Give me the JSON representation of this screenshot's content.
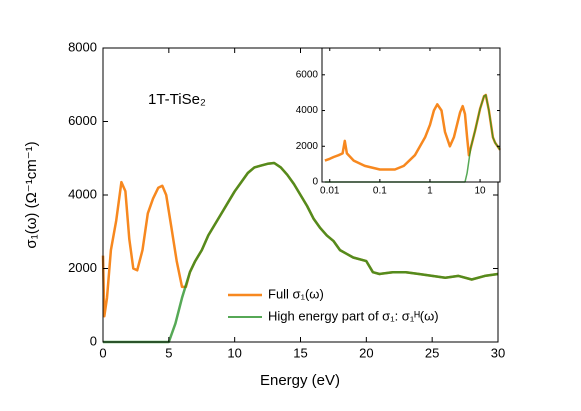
{
  "chart_data": [
    {
      "type": "line",
      "annotation": "1T-TiSe₂",
      "x_label": "Energy (eV)",
      "y_label": "σ₁(ω) (Ω⁻¹cm⁻¹)",
      "xlim": [
        0,
        30
      ],
      "ylim": [
        0,
        8000
      ],
      "xticks": [
        0,
        5,
        10,
        15,
        20,
        25,
        30
      ],
      "yticks": [
        0,
        2000,
        4000,
        6000,
        8000
      ],
      "legend": "lower right",
      "series": [
        {
          "name": "Full σ₁(ω)",
          "color": "#f7881f",
          "x": [
            0,
            0.1,
            0.3,
            0.6,
            1.0,
            1.4,
            1.7,
            2.0,
            2.3,
            2.6,
            3.0,
            3.4,
            3.8,
            4.2,
            4.5,
            4.8,
            5.2,
            5.6,
            6.0,
            6.3,
            6.6,
            7.0,
            7.5,
            8.0,
            8.5,
            9.0,
            9.5,
            10.0,
            10.5,
            11.0,
            11.5,
            12.0,
            12.5,
            13.0,
            13.5,
            14.0,
            14.5,
            15.0,
            15.5,
            16.0,
            16.5,
            17.0,
            17.5,
            18.0,
            18.5,
            19.0,
            20.0,
            20.5,
            21.0,
            22.0,
            23.0,
            24.0,
            25.0,
            26.0,
            27.0,
            28.0,
            29.0,
            30.0
          ],
          "values": [
            2350,
            700,
            1200,
            2500,
            3300,
            4350,
            4100,
            2800,
            2000,
            1950,
            2500,
            3500,
            3900,
            4200,
            4250,
            4000,
            3100,
            2200,
            1500,
            1500,
            1900,
            2200,
            2500,
            2900,
            3200,
            3500,
            3800,
            4100,
            4350,
            4600,
            4750,
            4800,
            4850,
            4870,
            4750,
            4550,
            4300,
            4000,
            3700,
            3350,
            3100,
            2900,
            2750,
            2500,
            2400,
            2300,
            2200,
            1900,
            1850,
            1900,
            1900,
            1850,
            1800,
            1750,
            1800,
            1700,
            1800,
            1850
          ]
        },
        {
          "name": "High energy part of σ₁: σ₁ᴴ(ω)",
          "color": "#1e8c1e",
          "x": [
            0,
            5.0,
            5.5,
            6.0,
            6.6,
            7.0,
            7.5,
            8.0,
            8.5,
            9.0,
            9.5,
            10.0,
            10.5,
            11.0,
            11.5,
            12.0,
            12.5,
            13.0,
            13.5,
            14.0,
            14.5,
            15.0,
            15.5,
            16.0,
            16.5,
            17.0,
            17.5,
            18.0,
            18.5,
            19.0,
            20.0,
            20.5,
            21.0,
            22.0,
            23.0,
            24.0,
            25.0,
            26.0,
            27.0,
            28.0,
            29.0,
            30.0
          ],
          "values": [
            0,
            0,
            500,
            1200,
            1900,
            2200,
            2500,
            2900,
            3200,
            3500,
            3800,
            4100,
            4350,
            4600,
            4750,
            4800,
            4850,
            4870,
            4750,
            4550,
            4300,
            4000,
            3700,
            3350,
            3100,
            2900,
            2750,
            2500,
            2400,
            2300,
            2200,
            1900,
            1850,
            1900,
            1900,
            1850,
            1800,
            1750,
            1800,
            1700,
            1800,
            1850
          ]
        }
      ]
    },
    {
      "type": "line",
      "log_x": true,
      "xlim": [
        0.007,
        25
      ],
      "ylim": [
        0,
        7500
      ],
      "xticks": [
        0.01,
        0.1,
        1,
        10
      ],
      "yticks": [
        0,
        2000,
        4000,
        6000
      ],
      "series": [
        {
          "color": "#f7881f",
          "x": [
            0.008,
            0.01,
            0.012,
            0.015,
            0.018,
            0.02,
            0.022,
            0.03,
            0.05,
            0.1,
            0.2,
            0.3,
            0.5,
            0.8,
            1.0,
            1.2,
            1.4,
            1.7,
            2.0,
            2.5,
            3.0,
            4.0,
            4.5,
            5.0,
            5.5,
            6.0,
            6.5,
            8.0,
            10.0,
            12.0,
            13.0,
            15.0,
            18.0,
            20.0,
            25.0
          ],
          "values": [
            1200,
            1300,
            1400,
            1500,
            1600,
            2300,
            1600,
            1200,
            900,
            700,
            700,
            900,
            1500,
            2500,
            3200,
            4000,
            4350,
            4000,
            2800,
            2000,
            2500,
            3900,
            4250,
            3800,
            2500,
            1500,
            1900,
            2900,
            4100,
            4800,
            4870,
            4000,
            2500,
            2200,
            1800
          ]
        },
        {
          "color": "#1e8c1e",
          "x": [
            0.008,
            5.0,
            5.5,
            6.0,
            6.5,
            8.0,
            10.0,
            12.0,
            13.0,
            15.0,
            18.0,
            20.0,
            25.0
          ],
          "values": [
            0,
            0,
            500,
            1200,
            1900,
            2900,
            4100,
            4800,
            4870,
            4000,
            2500,
            2200,
            1800
          ]
        }
      ]
    }
  ]
}
